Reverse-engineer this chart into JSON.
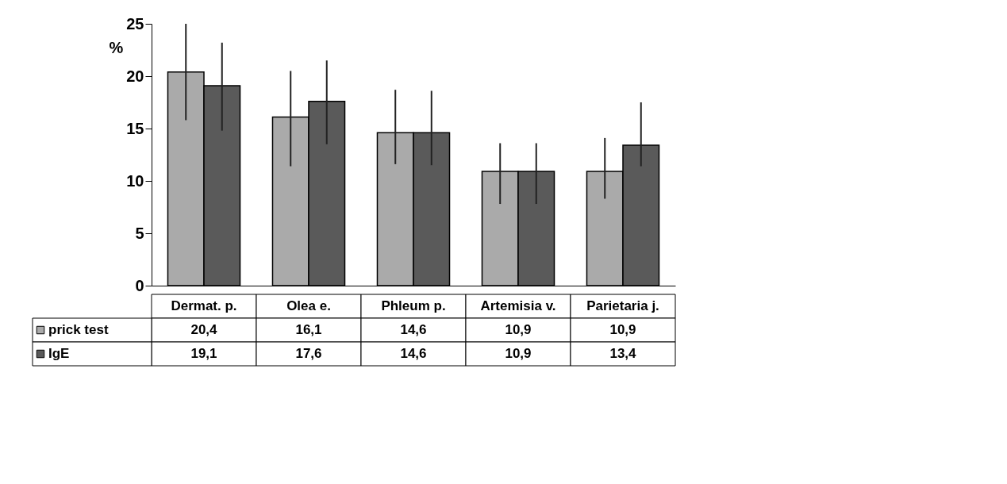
{
  "chart_data": {
    "type": "bar",
    "ylabel": "%",
    "categories": [
      "Dermat. p.",
      "Olea e.",
      "Phleum p.",
      "Artemisia v.",
      "Parietaria j."
    ],
    "series": [
      {
        "name": "prick test",
        "color": "#aaaaaa",
        "values": [
          20.4,
          16.1,
          14.6,
          10.9,
          10.9
        ],
        "value_labels": [
          "20,4",
          "16,1",
          "14,6",
          "10,9",
          "10,9"
        ],
        "errors": [
          [
            15.8,
            25
          ],
          [
            11.4,
            20.5
          ],
          [
            11.6,
            18.7
          ],
          [
            7.8,
            13.6
          ],
          [
            8.3,
            14.1
          ]
        ]
      },
      {
        "name": "IgE",
        "color": "#5a5a5a",
        "values": [
          19.1,
          17.6,
          14.6,
          10.9,
          13.4
        ],
        "value_labels": [
          "19,1",
          "17,6",
          "14,6",
          "10,9",
          "13,4"
        ],
        "errors": [
          [
            14.8,
            23.2
          ],
          [
            13.5,
            21.5
          ],
          [
            11.5,
            18.6
          ],
          [
            7.8,
            13.6
          ],
          [
            11.4,
            17.5
          ]
        ]
      }
    ],
    "ylim": [
      0,
      25
    ],
    "yticks": [
      0,
      5,
      10,
      15,
      20,
      25
    ],
    "grid": false,
    "legend": "bottom"
  }
}
